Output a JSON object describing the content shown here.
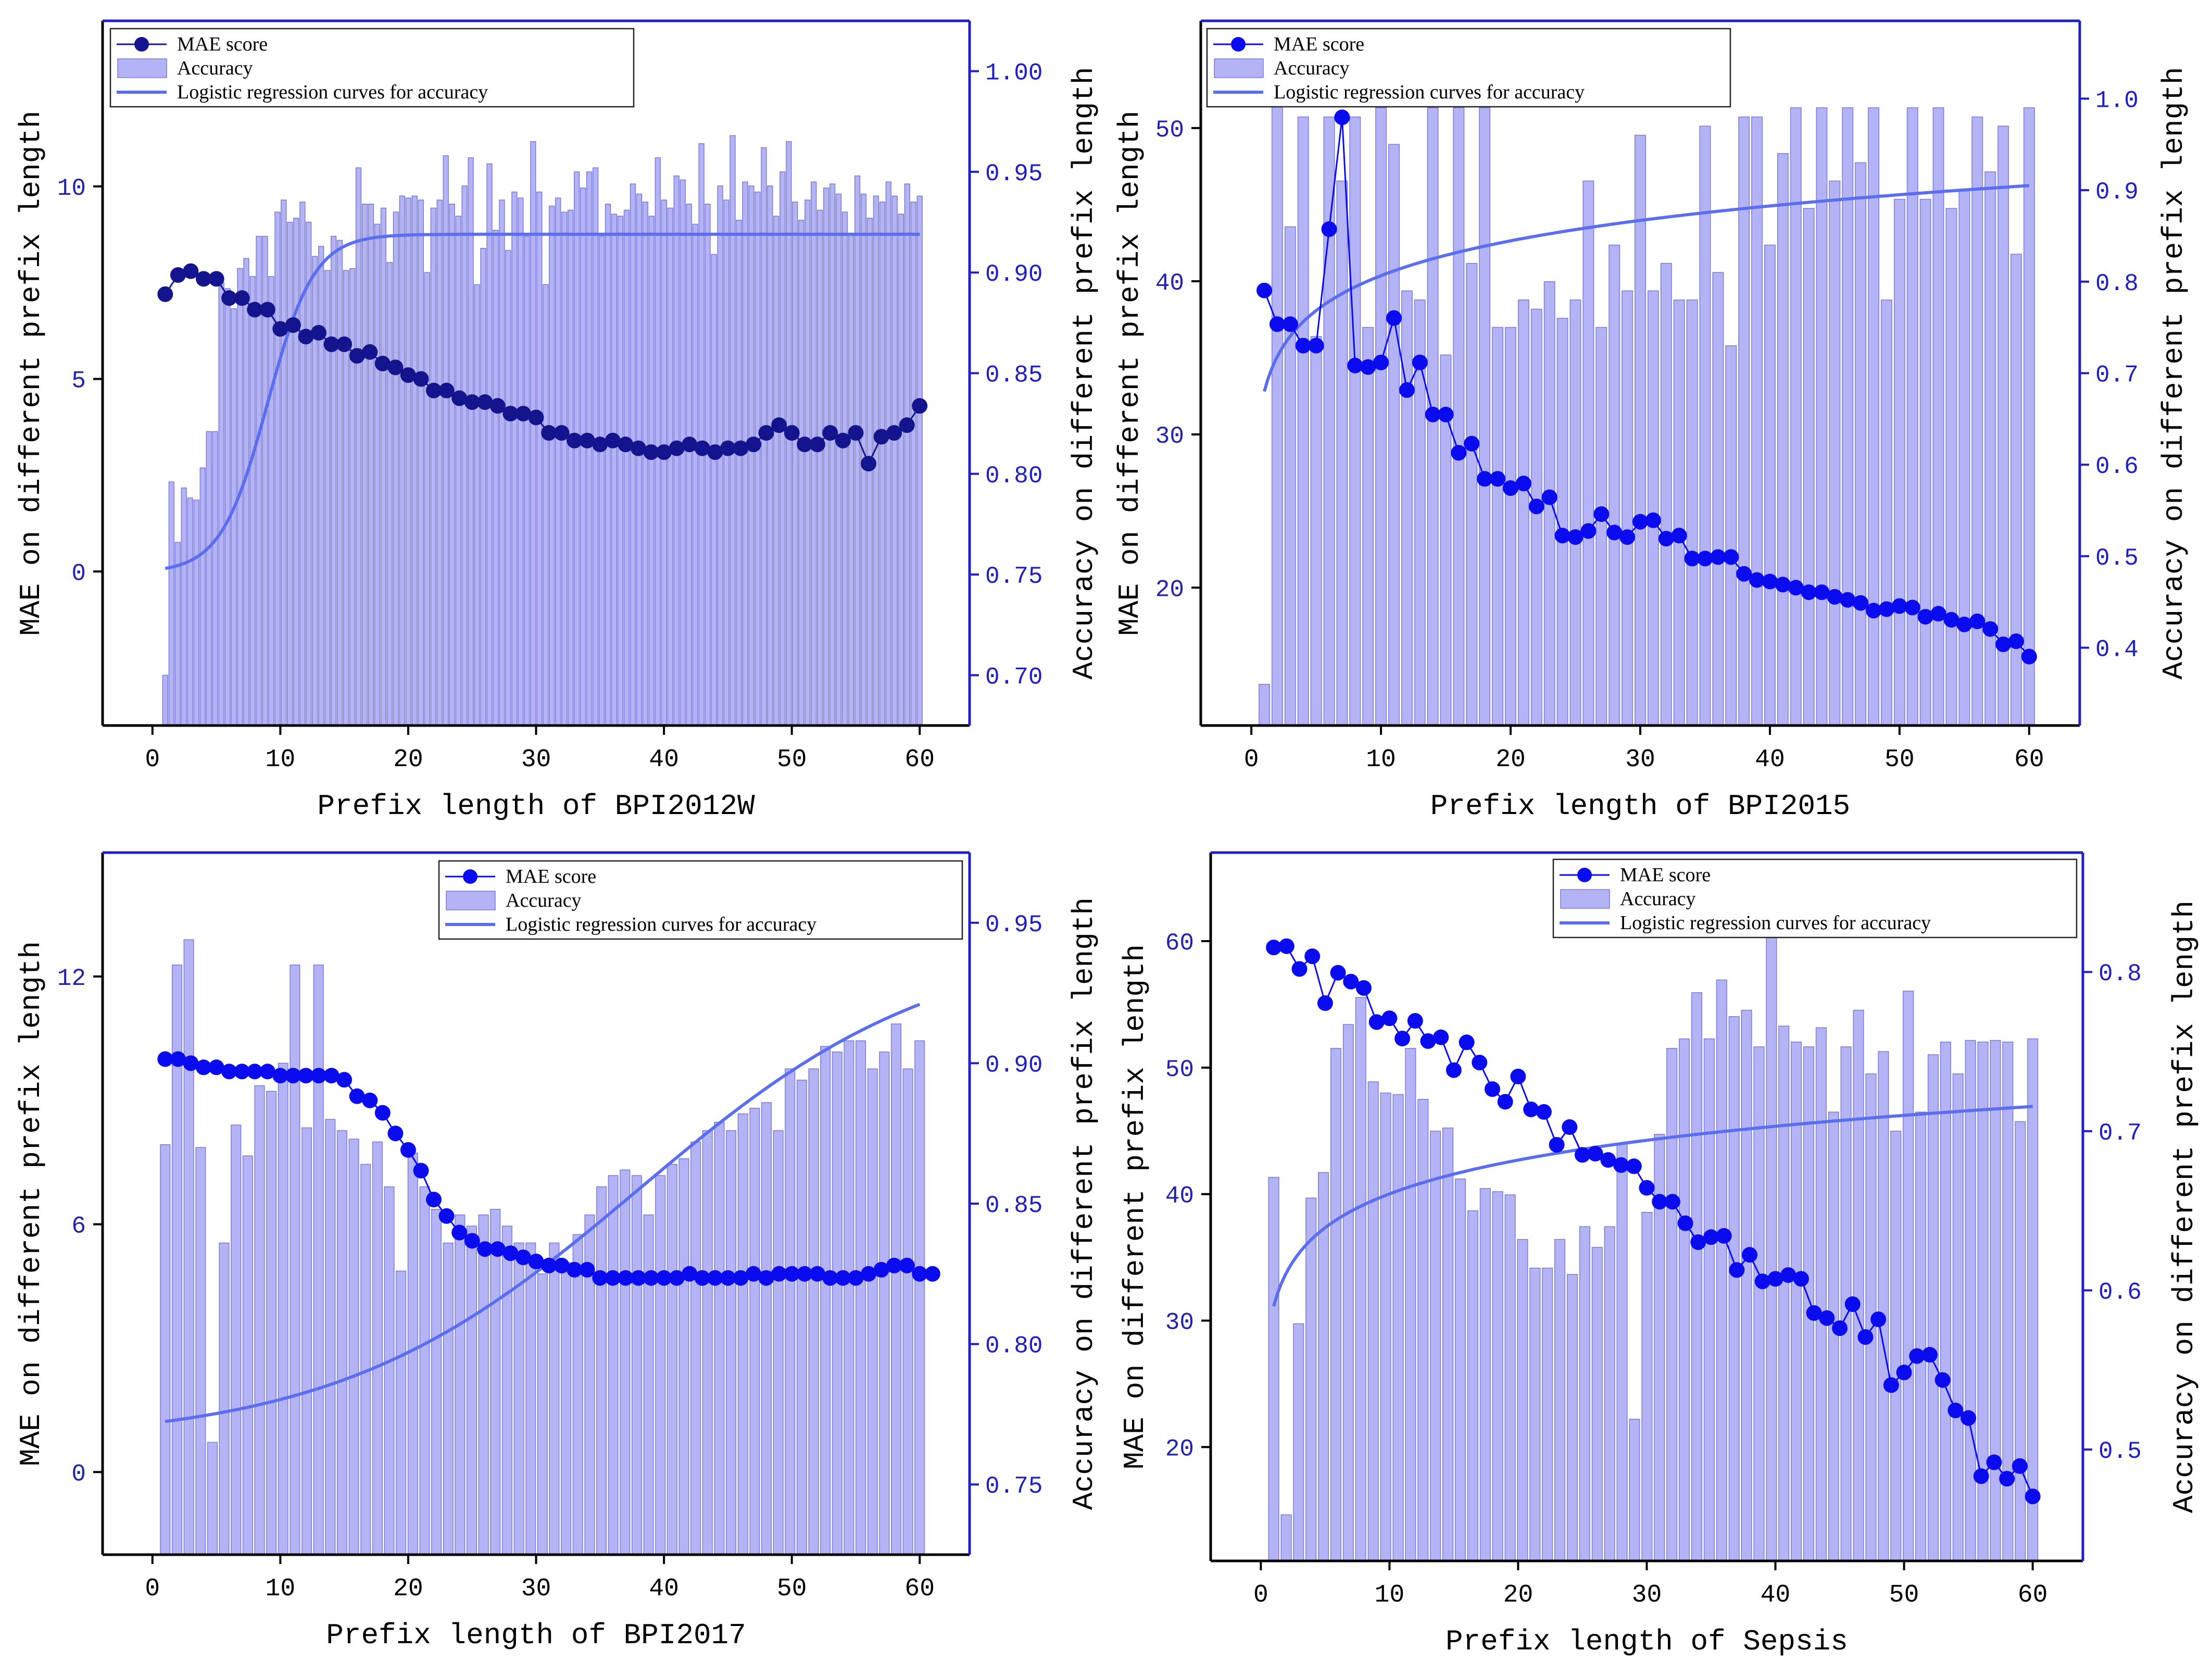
{
  "colors": {
    "bar_fill": "#b3b3f5",
    "bar_edge": "#7b7bd9",
    "curve": "#5b6ef0",
    "right_axis": "#2020c0",
    "left_tick": "#2222aa",
    "mae_dark": "#14148f",
    "mae_bright": "#0b0bf0"
  },
  "chart_data": [
    {
      "type": "bar+line",
      "dataset": "BPI2012W",
      "xlabel": "Prefix length of BPI2012W",
      "ylabel_left": "MAE on different prefix length",
      "ylabel_right": "Accuracy on different prefix length",
      "xlim": [
        -3.9,
        63.9
      ],
      "ylim_left": [
        -4,
        14.3
      ],
      "ylim_right": [
        0.675,
        1.025
      ],
      "x_ticks": [
        "0",
        "10",
        "20",
        "30",
        "40",
        "50",
        "60"
      ],
      "y_left_ticks": [
        "0",
        "5",
        "10"
      ],
      "y_right_ticks": [
        "0.70",
        "0.75",
        "0.80",
        "0.85",
        "0.90",
        "0.95",
        "1.00"
      ],
      "legend": [
        "MAE score",
        "Accuracy",
        "Logistic regression curves for accuracy"
      ],
      "legend_position": "top-left",
      "mae_color": "dark",
      "accuracy": [
        0.7,
        0.796,
        0.766,
        0.793,
        0.788,
        0.787,
        0.803,
        0.821,
        0.821,
        0.895,
        0.892,
        0.882,
        0.902,
        0.907,
        0.898,
        0.918,
        0.918,
        0.898,
        0.93,
        0.936,
        0.925,
        0.927,
        0.935,
        0.925,
        0.908,
        0.913,
        0.901,
        0.918,
        0.916,
        0.901,
        0.902,
        0.952,
        0.934,
        0.934,
        0.924,
        0.932,
        0.905,
        0.93,
        0.938,
        0.937,
        0.938,
        0.936,
        0.9,
        0.932,
        0.936,
        0.958,
        0.934,
        0.928,
        0.943,
        0.957,
        0.894,
        0.912,
        0.954,
        0.921,
        0.936,
        0.911,
        0.94,
        0.937,
        0.918,
        0.965,
        0.94,
        0.894,
        0.933,
        0.937,
        0.93,
        0.931,
        0.95,
        0.942,
        0.95,
        0.952,
        0.918,
        0.934,
        0.929,
        0.928,
        0.931,
        0.944,
        0.939,
        0.935,
        0.928,
        0.957,
        0.936,
        0.932,
        0.948,
        0.946,
        0.934,
        0.924,
        0.964,
        0.934,
        0.909,
        0.943,
        0.936,
        0.968,
        0.926,
        0.945,
        0.943,
        0.94,
        0.962,
        0.943,
        0.928,
        0.95,
        0.965,
        0.935,
        0.926,
        0.936,
        0.945,
        0.931,
        0.942,
        0.944,
        0.939,
        0.93,
        0.919,
        0.948,
        0.939,
        0.927,
        0.938,
        0.935,
        0.945,
        0.938,
        0.929,
        0.944,
        0.935,
        0.938
      ],
      "mae": [
        7.2,
        7.7,
        7.8,
        7.6,
        7.6,
        7.1,
        7.1,
        6.8,
        6.8,
        6.3,
        6.4,
        6.1,
        6.2,
        5.9,
        5.9,
        5.6,
        5.7,
        5.4,
        5.3,
        5.1,
        5.0,
        4.7,
        4.7,
        4.5,
        4.4,
        4.4,
        4.3,
        4.1,
        4.1,
        4.0,
        3.6,
        3.6,
        3.4,
        3.4,
        3.3,
        3.4,
        3.3,
        3.2,
        3.1,
        3.1,
        3.2,
        3.3,
        3.2,
        3.1,
        3.2,
        3.2,
        3.3,
        3.6,
        3.8,
        3.6,
        3.3,
        3.3,
        3.6,
        3.4,
        3.6,
        2.8,
        3.5,
        3.6,
        3.8,
        4.3
      ],
      "curve": {
        "L0": 0.751,
        "L1": 0.919,
        "k": 0.55,
        "x0": 9.0
      }
    },
    {
      "type": "bar+line",
      "dataset": "BPI2015",
      "xlabel": "Prefix length of BPI2015",
      "ylabel_left": "MAE on different prefix length",
      "ylabel_right": "Accuracy on different prefix length",
      "xlim": [
        -3.9,
        63.9
      ],
      "ylim_left": [
        11,
        57
      ],
      "ylim_right": [
        0.315,
        1.085
      ],
      "x_ticks": [
        "0",
        "10",
        "20",
        "30",
        "40",
        "50",
        "60"
      ],
      "y_left_ticks": [
        "20",
        "30",
        "40",
        "50"
      ],
      "y_right_ticks": [
        "0.4",
        "0.5",
        "0.6",
        "0.7",
        "0.8",
        "0.9",
        "1.0"
      ],
      "legend": [
        "MAE score",
        "Accuracy",
        "Logistic regression curves for accuracy"
      ],
      "legend_position": "top-left",
      "mae_color": "bright",
      "accuracy": [
        0.36,
        1.0,
        0.86,
        0.98,
        0.74,
        0.98,
        0.91,
        0.98,
        0.75,
        0.99,
        0.95,
        0.79,
        0.78,
        0.99,
        0.72,
        0.99,
        0.82,
        0.99,
        0.75,
        0.75,
        0.78,
        0.77,
        0.8,
        0.76,
        0.78,
        0.91,
        0.75,
        0.84,
        0.79,
        0.96,
        0.79,
        0.82,
        0.78,
        0.78,
        0.97,
        0.81,
        0.73,
        0.98,
        0.98,
        0.84,
        0.94,
        0.99,
        0.88,
        0.99,
        0.91,
        0.99,
        0.93,
        0.99,
        0.78,
        0.89,
        0.99,
        0.89,
        0.99,
        0.88,
        0.9,
        0.98,
        0.92,
        0.97,
        0.83,
        0.99
      ],
      "mae": [
        39.4,
        37.2,
        37.2,
        35.8,
        35.8,
        43.4,
        50.7,
        34.5,
        34.4,
        34.7,
        37.6,
        32.9,
        34.7,
        31.3,
        31.3,
        28.8,
        29.4,
        27.1,
        27.1,
        26.5,
        26.8,
        25.3,
        25.9,
        23.4,
        23.3,
        23.7,
        24.8,
        23.6,
        23.3,
        24.3,
        24.4,
        23.2,
        23.4,
        21.9,
        21.9,
        22.0,
        22.0,
        20.9,
        20.5,
        20.4,
        20.2,
        20.0,
        19.7,
        19.7,
        19.4,
        19.2,
        19.0,
        18.5,
        18.6,
        18.8,
        18.7,
        18.1,
        18.3,
        17.9,
        17.6,
        17.8,
        17.3,
        16.3,
        16.5,
        15.5
      ],
      "curve": {
        "L0": 0.68,
        "L1": 0.905,
        "type": "log"
      }
    },
    {
      "type": "bar+line",
      "dataset": "BPI2017",
      "xlabel": "Prefix length of BPI2017",
      "ylabel_left": "MAE on different prefix length",
      "ylabel_right": "Accuracy on different prefix length",
      "xlim": [
        -3.9,
        63.9
      ],
      "ylim_left": [
        -2,
        15
      ],
      "ylim_right": [
        0.725,
        0.975
      ],
      "x_ticks": [
        "0",
        "10",
        "20",
        "30",
        "40",
        "50",
        "60"
      ],
      "y_left_ticks": [
        "0",
        "6",
        "12"
      ],
      "y_right_ticks": [
        "0.75",
        "0.80",
        "0.85",
        "0.90",
        "0.95"
      ],
      "legend": [
        "MAE score",
        "Accuracy",
        "Logistic regression curves for accuracy"
      ],
      "legend_position": "top-right",
      "mae_color": "bright",
      "accuracy": [
        0.871,
        0.935,
        0.944,
        0.87,
        0.765,
        0.836,
        0.878,
        0.867,
        0.892,
        0.89,
        0.9,
        0.935,
        0.877,
        0.935,
        0.88,
        0.876,
        0.873,
        0.864,
        0.872,
        0.856,
        0.826,
        0.868,
        0.856,
        0.848,
        0.836,
        0.846,
        0.842,
        0.846,
        0.848,
        0.842,
        0.836,
        0.836,
        0.825,
        0.836,
        0.829,
        0.839,
        0.846,
        0.856,
        0.86,
        0.862,
        0.86,
        0.846,
        0.86,
        0.864,
        0.866,
        0.872,
        0.876,
        0.879,
        0.876,
        0.882,
        0.884,
        0.886,
        0.876,
        0.898,
        0.894,
        0.898,
        0.906,
        0.904,
        0.908,
        0.908,
        0.898,
        0.904,
        0.914,
        0.898,
        0.908
      ],
      "mae": [
        10.0,
        10.0,
        9.9,
        9.8,
        9.8,
        9.7,
        9.7,
        9.7,
        9.7,
        9.6,
        9.6,
        9.6,
        9.6,
        9.6,
        9.5,
        9.1,
        9.0,
        8.7,
        8.2,
        7.8,
        7.3,
        6.6,
        6.2,
        5.8,
        5.6,
        5.4,
        5.4,
        5.3,
        5.2,
        5.1,
        5.0,
        5.0,
        4.9,
        4.9,
        4.7,
        4.7,
        4.7,
        4.7,
        4.7,
        4.7,
        4.7,
        4.8,
        4.7,
        4.7,
        4.7,
        4.7,
        4.8,
        4.7,
        4.8,
        4.8,
        4.8,
        4.8,
        4.7,
        4.7,
        4.7,
        4.8,
        4.9,
        5.0,
        5.0,
        4.8,
        4.8
      ],
      "curve": {
        "L0": 0.765,
        "L1": 0.945,
        "k": 0.085,
        "x0": 38.0
      }
    },
    {
      "type": "bar+line",
      "dataset": "Sepsis",
      "xlabel": "Prefix length of Sepsis",
      "ylabel_left": "MAE on different prefix length",
      "ylabel_right": "Accuracy on different prefix length",
      "xlim": [
        -3.9,
        63.9
      ],
      "ylim_left": [
        11,
        67
      ],
      "ylim_right": [
        0.43,
        0.875
      ],
      "x_ticks": [
        "0",
        "10",
        "20",
        "30",
        "40",
        "50",
        "60"
      ],
      "y_left_ticks": [
        "20",
        "30",
        "40",
        "50",
        "60"
      ],
      "y_right_ticks": [
        "0.5",
        "0.6",
        "0.7",
        "0.8"
      ],
      "legend": [
        "MAE score",
        "Accuracy",
        "Logistic regression curves for accuracy"
      ],
      "legend_position": "top-right",
      "mae_color": "bright",
      "accuracy": [
        0.671,
        0.459,
        0.579,
        0.658,
        0.674,
        0.752,
        0.767,
        0.784,
        0.731,
        0.724,
        0.723,
        0.752,
        0.72,
        0.7,
        0.702,
        0.67,
        0.65,
        0.664,
        0.662,
        0.66,
        0.632,
        0.614,
        0.614,
        0.632,
        0.61,
        0.64,
        0.627,
        0.64,
        0.692,
        0.519,
        0.649,
        0.698,
        0.752,
        0.758,
        0.787,
        0.758,
        0.795,
        0.772,
        0.776,
        0.753,
        0.823,
        0.766,
        0.756,
        0.753,
        0.765,
        0.712,
        0.753,
        0.776,
        0.736,
        0.75,
        0.7,
        0.788,
        0.712,
        0.748,
        0.756,
        0.736,
        0.757,
        0.756,
        0.757,
        0.756,
        0.706,
        0.758
      ],
      "mae": [
        59.5,
        59.6,
        57.8,
        58.8,
        55.1,
        57.5,
        56.8,
        56.3,
        53.6,
        53.9,
        52.3,
        53.7,
        52.1,
        52.4,
        49.8,
        52.0,
        50.4,
        48.3,
        47.3,
        49.3,
        46.7,
        46.5,
        43.9,
        45.3,
        43.1,
        43.2,
        42.7,
        42.3,
        42.2,
        40.5,
        39.4,
        39.4,
        37.7,
        36.2,
        36.6,
        36.7,
        34.0,
        35.2,
        33.1,
        33.3,
        33.6,
        33.3,
        30.6,
        30.2,
        29.4,
        31.3,
        28.7,
        30.1,
        24.9,
        25.9,
        27.2,
        27.3,
        25.3,
        22.9,
        22.3,
        17.7,
        18.8,
        17.5,
        18.5,
        16.1
      ],
      "curve": {
        "L0": 0.59,
        "L1": 0.7155,
        "type": "log"
      }
    }
  ]
}
